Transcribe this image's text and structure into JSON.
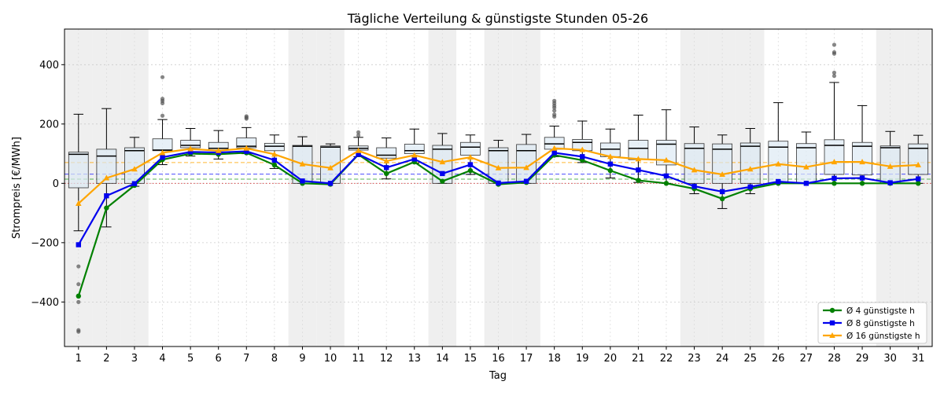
{
  "chart_data": {
    "type": "box+line",
    "title": "Tägliche Verteilung & günstigste Stunden 05-26",
    "xlabel": "Tag",
    "ylabel": "Strompreis [€/MWh]",
    "ylim": [
      -550,
      520
    ],
    "yticks": [
      -400,
      -200,
      0,
      200,
      400
    ],
    "categories": [
      "1",
      "2",
      "3",
      "4",
      "5",
      "6",
      "7",
      "8",
      "9",
      "10",
      "11",
      "12",
      "13",
      "14",
      "15",
      "16",
      "17",
      "18",
      "19",
      "20",
      "21",
      "22",
      "23",
      "24",
      "25",
      "26",
      "27",
      "28",
      "29",
      "30",
      "31"
    ],
    "weekend_days": [
      1,
      2,
      3,
      9,
      10,
      14,
      16,
      17,
      23,
      24,
      25,
      30,
      31
    ],
    "grid": true,
    "legend_position": "lower right",
    "reference_lines": [
      {
        "y": 0,
        "color": "#d62728",
        "style": "dotted"
      },
      {
        "y": 14,
        "color": "#2ca02c",
        "style": "dashed"
      },
      {
        "y": 31,
        "color": "#1f1fff",
        "style": "dashed"
      },
      {
        "y": 70,
        "color": "#ffa500",
        "style": "dashed"
      }
    ],
    "boxes": [
      {
        "day": 1,
        "whislo": -160,
        "q1": -15,
        "med": 98,
        "q3": 105,
        "whishi": 233,
        "fliers": [
          -280,
          -340,
          -400,
          -495,
          -500
        ]
      },
      {
        "day": 2,
        "whislo": -147,
        "q1": 0,
        "med": 92,
        "q3": 115,
        "whishi": 252,
        "fliers": []
      },
      {
        "day": 3,
        "whislo": -10,
        "q1": 0,
        "med": 110,
        "q3": 120,
        "whishi": 155,
        "fliers": []
      },
      {
        "day": 4,
        "whislo": 63,
        "q1": 110,
        "med": 112,
        "q3": 150,
        "whishi": 215,
        "fliers": [
          228,
          270,
          278,
          285,
          358
        ]
      },
      {
        "day": 5,
        "whislo": 92,
        "q1": 120,
        "med": 128,
        "q3": 145,
        "whishi": 185,
        "fliers": []
      },
      {
        "day": 6,
        "whislo": 82,
        "q1": 112,
        "med": 118,
        "q3": 138,
        "whishi": 178,
        "fliers": []
      },
      {
        "day": 7,
        "whislo": 100,
        "q1": 120,
        "med": 125,
        "q3": 153,
        "whishi": 188,
        "fliers": [
          218,
          222,
          226
        ]
      },
      {
        "day": 8,
        "whislo": 50,
        "q1": 110,
        "med": 125,
        "q3": 135,
        "whishi": 163,
        "fliers": []
      },
      {
        "day": 9,
        "whislo": 0,
        "q1": 0,
        "med": 125,
        "q3": 128,
        "whishi": 157,
        "fliers": []
      },
      {
        "day": 10,
        "whislo": 0,
        "q1": 0,
        "med": 122,
        "q3": 126,
        "whishi": 133,
        "fliers": []
      },
      {
        "day": 11,
        "whislo": 90,
        "q1": 112,
        "med": 118,
        "q3": 126,
        "whishi": 155,
        "fliers": [
          162,
          172
        ]
      },
      {
        "day": 12,
        "whislo": 15,
        "q1": 85,
        "med": 95,
        "q3": 120,
        "whishi": 153,
        "fliers": []
      },
      {
        "day": 13,
        "whislo": 68,
        "q1": 100,
        "med": 110,
        "q3": 132,
        "whishi": 183,
        "fliers": []
      },
      {
        "day": 14,
        "whislo": 0,
        "q1": 0,
        "med": 115,
        "q3": 128,
        "whishi": 168,
        "fliers": []
      },
      {
        "day": 15,
        "whislo": 30,
        "q1": 95,
        "med": 122,
        "q3": 138,
        "whishi": 163,
        "fliers": []
      },
      {
        "day": 16,
        "whislo": 0,
        "q1": 0,
        "med": 110,
        "q3": 120,
        "whishi": 145,
        "fliers": []
      },
      {
        "day": 17,
        "whislo": 0,
        "q1": 0,
        "med": 110,
        "q3": 131,
        "whishi": 165,
        "fliers": []
      },
      {
        "day": 18,
        "whislo": 90,
        "q1": 115,
        "med": 133,
        "q3": 155,
        "whishi": 193,
        "fliers": [
          225,
          232,
          245,
          255,
          262,
          270,
          278
        ]
      },
      {
        "day": 19,
        "whislo": 70,
        "q1": 110,
        "med": 138,
        "q3": 148,
        "whishi": 210,
        "fliers": []
      },
      {
        "day": 20,
        "whislo": 18,
        "q1": 90,
        "med": 115,
        "q3": 136,
        "whishi": 183,
        "fliers": []
      },
      {
        "day": 21,
        "whislo": 3,
        "q1": 80,
        "med": 118,
        "q3": 145,
        "whishi": 230,
        "fliers": []
      },
      {
        "day": 22,
        "whislo": 0,
        "q1": 62,
        "med": 132,
        "q3": 145,
        "whishi": 248,
        "fliers": []
      },
      {
        "day": 23,
        "whislo": -35,
        "q1": 0,
        "med": 118,
        "q3": 134,
        "whishi": 190,
        "fliers": []
      },
      {
        "day": 24,
        "whislo": -85,
        "q1": 0,
        "med": 115,
        "q3": 133,
        "whishi": 163,
        "fliers": []
      },
      {
        "day": 25,
        "whislo": -35,
        "q1": 0,
        "med": 125,
        "q3": 136,
        "whishi": 185,
        "fliers": []
      },
      {
        "day": 26,
        "whislo": 0,
        "q1": 0,
        "med": 122,
        "q3": 142,
        "whishi": 272,
        "fliers": []
      },
      {
        "day": 27,
        "whislo": 0,
        "q1": 0,
        "med": 120,
        "q3": 134,
        "whishi": 173,
        "fliers": []
      },
      {
        "day": 28,
        "whislo": 0,
        "q1": 30,
        "med": 128,
        "q3": 147,
        "whishi": 340,
        "fliers": [
          362,
          373,
          437,
          442,
          467
        ]
      },
      {
        "day": 29,
        "whislo": 0,
        "q1": 28,
        "med": 125,
        "q3": 138,
        "whishi": 262,
        "fliers": []
      },
      {
        "day": 30,
        "whislo": 0,
        "q1": 0,
        "med": 120,
        "q3": 126,
        "whishi": 175,
        "fliers": []
      },
      {
        "day": 31,
        "whislo": 0,
        "q1": 30,
        "med": 118,
        "q3": 133,
        "whishi": 162,
        "fliers": []
      }
    ],
    "series": [
      {
        "name": "Ø 4 günstigste h",
        "color": "#008000",
        "marker": "circle",
        "values": [
          -380,
          -83,
          -7,
          80,
          100,
          98,
          103,
          62,
          0,
          -3,
          97,
          33,
          72,
          7,
          43,
          -3,
          3,
          95,
          78,
          43,
          10,
          0,
          -18,
          -52,
          -18,
          0,
          0,
          0,
          0,
          0,
          0
        ]
      },
      {
        "name": "Ø 8 günstigste h",
        "color": "#0000ee",
        "marker": "square",
        "values": [
          -207,
          -42,
          -1,
          88,
          106,
          104,
          108,
          78,
          8,
          0,
          98,
          53,
          82,
          33,
          63,
          1,
          7,
          103,
          90,
          65,
          45,
          25,
          -10,
          -28,
          -12,
          6,
          0,
          17,
          18,
          2,
          15
        ]
      },
      {
        "name": "Ø 16 günstigste h",
        "color": "#ffa500",
        "marker": "triangle",
        "values": [
          -68,
          18,
          48,
          103,
          116,
          110,
          118,
          98,
          65,
          52,
          110,
          75,
          95,
          72,
          88,
          52,
          53,
          118,
          113,
          90,
          82,
          78,
          45,
          30,
          48,
          65,
          55,
          72,
          72,
          57,
          62
        ]
      }
    ]
  }
}
